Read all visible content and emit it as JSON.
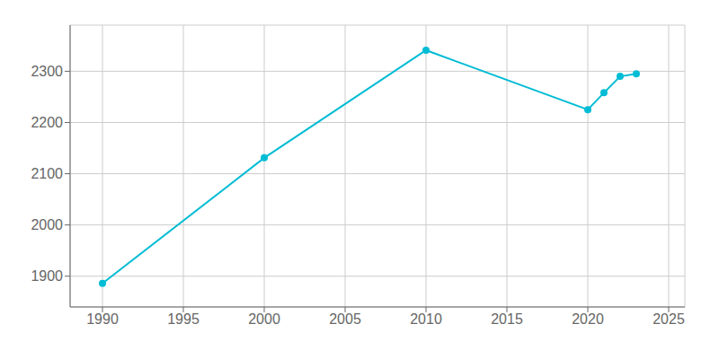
{
  "chart_data": {
    "type": "line",
    "x": [
      1990,
      2000,
      2010,
      2020,
      2021,
      2022,
      2023
    ],
    "values": [
      1886,
      2131,
      2341,
      2225,
      2258,
      2290,
      2295
    ],
    "color": "#00BCD4",
    "marker": "circle",
    "xlim": [
      1988,
      2026
    ],
    "ylim": [
      1840,
      2390
    ],
    "xticks": [
      1990,
      1995,
      2000,
      2005,
      2010,
      2015,
      2020,
      2025
    ],
    "yticks": [
      1900,
      2000,
      2100,
      2200,
      2300
    ],
    "grid": true
  }
}
